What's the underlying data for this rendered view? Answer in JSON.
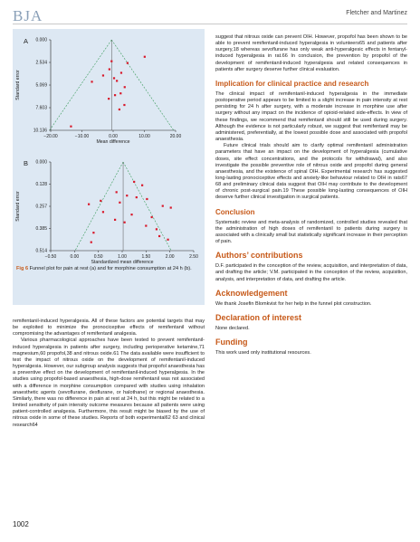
{
  "header": {
    "journal": "BJA",
    "authors": "Fletcher and Martinez"
  },
  "figure": {
    "caption_label": "Fig 6",
    "caption_text": "Funnel plot for pain at rest (a) and for morphine consumption at 24 h (b)."
  },
  "chart_data": [
    {
      "type": "scatter",
      "panel_label": "A",
      "xlabel": "Mean difference",
      "ylabel": "Standard error",
      "xlim": [
        -20,
        20
      ],
      "ylim": [
        0,
        10.136
      ],
      "y_reversed": true,
      "x_ticks": [
        "−20.00",
        "−10.00",
        "0.00",
        "10.00",
        "20.00"
      ],
      "x_tick_values": [
        -20,
        -10,
        0,
        10,
        20
      ],
      "y_ticks": [
        "0.000",
        "2.534",
        "5.069",
        "7.603",
        "10.136"
      ],
      "y_tick_values": [
        0,
        2.534,
        5.069,
        7.603,
        10.136
      ],
      "funnel_center": -0.5,
      "points": [
        {
          "x": -0.5,
          "y": 2.4
        },
        {
          "x": 4.6,
          "y": 2.6
        },
        {
          "x": 10.1,
          "y": 1.9
        },
        {
          "x": -1.2,
          "y": 3.3
        },
        {
          "x": 2.6,
          "y": 3.7
        },
        {
          "x": -3.2,
          "y": 4.0
        },
        {
          "x": 0.3,
          "y": 4.3
        },
        {
          "x": 1.2,
          "y": 4.6
        },
        {
          "x": -6.8,
          "y": 4.7
        },
        {
          "x": 3.7,
          "y": 5.3
        },
        {
          "x": 2.4,
          "y": 6.0
        },
        {
          "x": 0.6,
          "y": 6.2
        },
        {
          "x": -1.4,
          "y": 6.6
        },
        {
          "x": 3.6,
          "y": 7.3
        },
        {
          "x": 2.0,
          "y": 7.8
        },
        {
          "x": -13.5,
          "y": 9.7
        }
      ]
    },
    {
      "type": "scatter",
      "panel_label": "B",
      "xlabel": "Standardized mean difference",
      "ylabel": "Standard error",
      "xlim": [
        -0.5,
        2.5
      ],
      "ylim": [
        0,
        0.514
      ],
      "y_reversed": true,
      "x_ticks": [
        "−0.50",
        "0.00",
        "0.50",
        "1.00",
        "1.50",
        "2.00",
        "2.50"
      ],
      "x_tick_values": [
        -0.5,
        0,
        0.5,
        1.0,
        1.5,
        2.0,
        2.5
      ],
      "y_ticks": [
        "0.000",
        "0.128",
        "0.257",
        "0.385",
        "0.514"
      ],
      "y_tick_values": [
        0,
        0.128,
        0.257,
        0.385,
        0.514
      ],
      "funnel_center": 1.02,
      "points": [
        {
          "x": 1.25,
          "y": 0.115
        },
        {
          "x": 1.42,
          "y": 0.135
        },
        {
          "x": 0.88,
          "y": 0.175
        },
        {
          "x": 1.1,
          "y": 0.195
        },
        {
          "x": 1.3,
          "y": 0.205
        },
        {
          "x": 1.52,
          "y": 0.215
        },
        {
          "x": 0.55,
          "y": 0.225
        },
        {
          "x": 0.95,
          "y": 0.235
        },
        {
          "x": 0.3,
          "y": 0.245
        },
        {
          "x": 1.85,
          "y": 0.255
        },
        {
          "x": 2.02,
          "y": 0.265
        },
        {
          "x": 0.6,
          "y": 0.29
        },
        {
          "x": 1.2,
          "y": 0.305
        },
        {
          "x": 1.62,
          "y": 0.32
        },
        {
          "x": 0.85,
          "y": 0.335
        },
        {
          "x": 1.05,
          "y": 0.35
        },
        {
          "x": 1.5,
          "y": 0.37
        },
        {
          "x": 1.72,
          "y": 0.39
        },
        {
          "x": 0.4,
          "y": 0.41
        },
        {
          "x": 1.78,
          "y": 0.43
        },
        {
          "x": 1.96,
          "y": 0.45
        },
        {
          "x": 0.35,
          "y": 0.465
        }
      ]
    }
  ],
  "left_col": {
    "p1": "remifentanil-induced hyperalgesia. All of these factors are potential targets that may be exploited to minimize the pronociceptive effects of remifentanil without compromising the advantages of remifentanil analgesia.",
    "p2": "Various pharmacological approaches have been tested to prevent remifentanil-induced hyperalgesia in patients after surgery, including perioperative ketamine,71 magnesium,60 propofol,38 and nitrous oxide.61 The data available were insufficient to test the impact of nitrous oxide on the development of remifentanil-induced hyperalgesia. However, our subgroup analysis suggests that propofol anaesthesia has a preventive effect on the development of remifentanil-induced hyperalgesia. In the studies using propofol-based anaesthesia, high-dose remifentanil was not associated with a difference in morphine consumption compared with studies using inhalation anaesthetic agents (sevoflurane, desflurane, or halothane) or regional anaesthesia. Similarly, there was no difference in pain at rest at 24 h, but this might be related to a limited sensitivity of pain intensity outcome measures because all patients were using patient-controlled analgesia. Furthermore, this result might be biased by the use of nitrous oxide in some of these studies. Reports of both experimental62 63 and clinical research64"
  },
  "right_col": {
    "p1": "suggest that nitrous oxide can prevent OIH. However, propofol has been shown to be able to prevent remifentanil-induced hyperalgesia in volunteers65 and patients after surgery,18 whereas sevoflurane has only weak anti-hyperalgesic effects in fentanyl-induced hyperalgesia in rat.66 In conclusion, the prevention by propofol of the development of remifentanil-induced hyperalgesia and related consequences in patients after surgery deserve further clinical evaluation.",
    "h_impl": "Implication for clinical practice and research",
    "p2": "The clinical impact of remifentanil-induced hyperalgesia in the immediate postoperative period appears to be limited to a slight increase in pain intensity at rest persisting for 24 h after surgery, with a moderate increase in morphine use after surgery without any impact on the incidence of opioid-related side-effects. In view of these findings, we recommend that remifentanil should still be used during surgery. Although the evidence is not particularly robust, we suggest that remifentanil may be administered, preferentially, at the lowest possible dose and associated with propofol anaesthesia.",
    "p3": "Future clinical trials should aim to clarify optimal remifentanil administration parameters that have an impact on the development of hyperalgesia (cumulative doses, site effect concentrations, and the protocols for withdrawal), and also investigate the possible preventive role of nitrous oxide and propofol during general anaesthesia, and the existence of spinal OIH. Experimental research has suggested long-lasting pronociceptive effects and anxiety-like behaviour related to OIH in rats67 68 and preliminary clinical data suggest that OIH may contribute to the development of chronic post-surgical pain.19 These possible long-lasting consequences of OIH deserve further clinical investigation in surgical patients.",
    "h_concl": "Conclusion",
    "p4": "Systematic review and meta-analysis of randomized, controlled studies revealed that the administration of high doses of remifentanil to patients during surgery is associated with a clinically small but statistically significant increase in their perception of pain.",
    "h_contrib": "Authors’ contributions",
    "p5": "D.F. participated in the conception of the review, acquisition, and interpretation of data, and drafting the article; V.M. participated in the conception of the review, acquisition, analysis, and interpretation of data, and drafting the article.",
    "h_ack": "Acknowledgement",
    "p6": "We thank Josefin Blomkvist for her help in the funnel plot construction.",
    "h_decl": "Declaration of interest",
    "p7": "None declared.",
    "h_fund": "Funding",
    "p8": "This work used only institutional resources."
  },
  "page_number": "1002"
}
